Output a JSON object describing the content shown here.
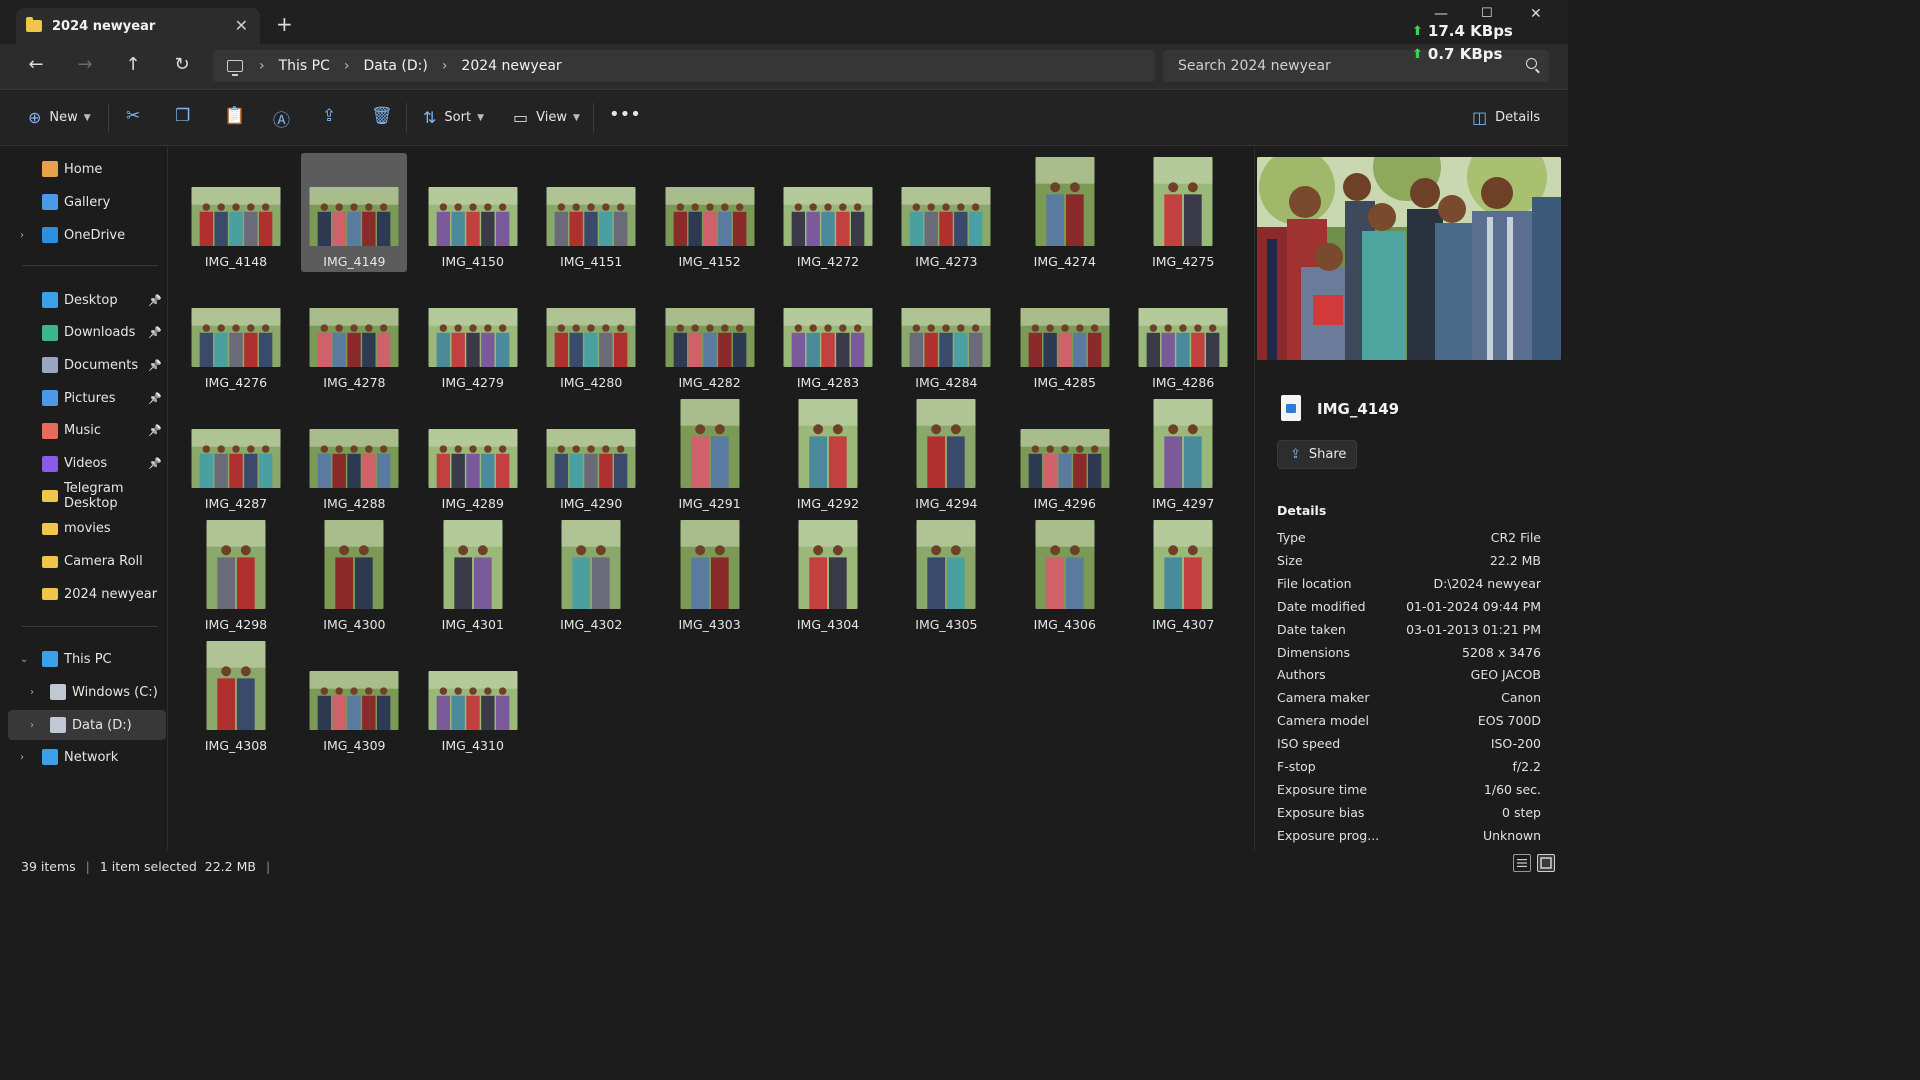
{
  "window": {
    "tab_title": "2024 newyear",
    "net_up": "17.4 KBps",
    "net_down": "0.7 KBps"
  },
  "nav": {
    "breadcrumb": [
      "This PC",
      "Data (D:)",
      "2024 newyear"
    ],
    "search_placeholder": "Search 2024 newyear"
  },
  "toolbar": {
    "new_label": "New",
    "sort_label": "Sort",
    "view_label": "View",
    "details_label": "Details"
  },
  "sidebar": {
    "quick": [
      "Home",
      "Gallery",
      "OneDrive"
    ],
    "pinned": [
      "Desktop",
      "Downloads",
      "Documents",
      "Pictures",
      "Music",
      "Videos",
      "Telegram Desktop",
      "movies",
      "Camera Roll",
      "2024 newyear"
    ],
    "tree": [
      "This PC",
      "Windows (C:)",
      "Data (D:)",
      "Network"
    ]
  },
  "files": [
    {
      "name": "IMG_4148",
      "o": "land",
      "selected": false
    },
    {
      "name": "IMG_4149",
      "o": "land",
      "selected": true
    },
    {
      "name": "IMG_4150",
      "o": "land",
      "selected": false
    },
    {
      "name": "IMG_4151",
      "o": "land",
      "selected": false
    },
    {
      "name": "IMG_4152",
      "o": "land",
      "selected": false
    },
    {
      "name": "IMG_4272",
      "o": "land",
      "selected": false
    },
    {
      "name": "IMG_4273",
      "o": "land",
      "selected": false
    },
    {
      "name": "IMG_4274",
      "o": "port",
      "selected": false
    },
    {
      "name": "IMG_4275",
      "o": "port",
      "selected": false
    },
    {
      "name": "IMG_4276",
      "o": "land",
      "selected": false
    },
    {
      "name": "IMG_4278",
      "o": "land",
      "selected": false
    },
    {
      "name": "IMG_4279",
      "o": "land",
      "selected": false
    },
    {
      "name": "IMG_4280",
      "o": "land",
      "selected": false
    },
    {
      "name": "IMG_4282",
      "o": "land",
      "selected": false
    },
    {
      "name": "IMG_4283",
      "o": "land",
      "selected": false
    },
    {
      "name": "IMG_4284",
      "o": "land",
      "selected": false
    },
    {
      "name": "IMG_4285",
      "o": "land",
      "selected": false
    },
    {
      "name": "IMG_4286",
      "o": "land",
      "selected": false
    },
    {
      "name": "IMG_4287",
      "o": "land",
      "selected": false
    },
    {
      "name": "IMG_4288",
      "o": "land",
      "selected": false
    },
    {
      "name": "IMG_4289",
      "o": "land",
      "selected": false
    },
    {
      "name": "IMG_4290",
      "o": "land",
      "selected": false
    },
    {
      "name": "IMG_4291",
      "o": "port",
      "selected": false
    },
    {
      "name": "IMG_4292",
      "o": "port",
      "selected": false
    },
    {
      "name": "IMG_4294",
      "o": "port",
      "selected": false
    },
    {
      "name": "IMG_4296",
      "o": "land",
      "selected": false
    },
    {
      "name": "IMG_4297",
      "o": "port",
      "selected": false
    },
    {
      "name": "IMG_4298",
      "o": "port",
      "selected": false
    },
    {
      "name": "IMG_4300",
      "o": "port",
      "selected": false
    },
    {
      "name": "IMG_4301",
      "o": "port",
      "selected": false
    },
    {
      "name": "IMG_4302",
      "o": "port",
      "selected": false
    },
    {
      "name": "IMG_4303",
      "o": "port",
      "selected": false
    },
    {
      "name": "IMG_4304",
      "o": "port",
      "selected": false
    },
    {
      "name": "IMG_4305",
      "o": "port",
      "selected": false
    },
    {
      "name": "IMG_4306",
      "o": "port",
      "selected": false
    },
    {
      "name": "IMG_4307",
      "o": "port",
      "selected": false
    },
    {
      "name": "IMG_4308",
      "o": "port",
      "selected": false
    },
    {
      "name": "IMG_4309",
      "o": "land",
      "selected": false
    },
    {
      "name": "IMG_4310",
      "o": "land",
      "selected": false
    }
  ],
  "details_pane": {
    "file_name": "IMG_4149",
    "share_label": "Share",
    "section_title": "Details",
    "properties": [
      {
        "k": "Type",
        "v": "CR2 File"
      },
      {
        "k": "Size",
        "v": "22.2 MB"
      },
      {
        "k": "File location",
        "v": "D:\\2024 newyear"
      },
      {
        "k": "Date modified",
        "v": "01-01-2024 09:44 PM"
      },
      {
        "k": "Date taken",
        "v": "03-01-2013 01:21 PM"
      },
      {
        "k": "Dimensions",
        "v": "5208 x 3476"
      },
      {
        "k": "Authors",
        "v": "GEO JACOB"
      },
      {
        "k": "Camera maker",
        "v": "Canon"
      },
      {
        "k": "Camera model",
        "v": "EOS 700D"
      },
      {
        "k": "ISO speed",
        "v": "ISO-200"
      },
      {
        "k": "F-stop",
        "v": "f/2.2"
      },
      {
        "k": "Exposure time",
        "v": "1/60 sec."
      },
      {
        "k": "Exposure bias",
        "v": "0 step"
      },
      {
        "k": "Exposure prog...",
        "v": "Unknown"
      }
    ]
  },
  "status": {
    "item_count": "39 items",
    "selection": "1 item selected",
    "size": "22.2 MB"
  },
  "colors": {
    "accent": "#7fb4f0",
    "folder": "#f0c54a",
    "net_arrow": "#3fd24f"
  }
}
